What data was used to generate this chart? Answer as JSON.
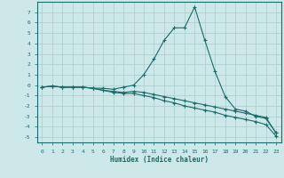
{
  "xlabel": "Humidex (Indice chaleur)",
  "background_color": "#cce8e8",
  "grid_color": "#aacccc",
  "line_color": "#1a6b6b",
  "xlim": [
    -0.5,
    23.5
  ],
  "ylim": [
    -5.5,
    8.0
  ],
  "xticks": [
    0,
    1,
    2,
    3,
    4,
    5,
    6,
    7,
    8,
    9,
    10,
    11,
    12,
    13,
    14,
    15,
    16,
    17,
    18,
    19,
    20,
    21,
    22,
    23
  ],
  "yticks": [
    -5,
    -4,
    -3,
    -2,
    -1,
    0,
    1,
    2,
    3,
    4,
    5,
    6,
    7
  ],
  "line1_x": [
    0,
    1,
    2,
    3,
    4,
    5,
    6,
    7,
    8,
    9,
    10,
    11,
    12,
    13,
    14,
    15,
    16,
    17,
    18,
    19,
    20,
    21,
    22,
    23
  ],
  "line1_y": [
    -0.2,
    -0.1,
    -0.2,
    -0.2,
    -0.2,
    -0.3,
    -0.3,
    -0.4,
    -0.2,
    0.0,
    1.0,
    2.5,
    4.3,
    5.5,
    5.5,
    7.5,
    4.3,
    1.3,
    -1.1,
    -2.3,
    -2.5,
    -3.0,
    -3.2,
    -4.6
  ],
  "line2_x": [
    0,
    1,
    2,
    3,
    4,
    5,
    6,
    7,
    8,
    9,
    10,
    11,
    12,
    13,
    14,
    15,
    16,
    17,
    18,
    19,
    20,
    21,
    22,
    23
  ],
  "line2_y": [
    -0.2,
    -0.1,
    -0.2,
    -0.2,
    -0.2,
    -0.3,
    -0.5,
    -0.6,
    -0.7,
    -0.6,
    -0.7,
    -0.9,
    -1.1,
    -1.3,
    -1.5,
    -1.7,
    -1.9,
    -2.1,
    -2.3,
    -2.5,
    -2.7,
    -2.9,
    -3.1,
    -4.6
  ],
  "line3_x": [
    0,
    1,
    2,
    3,
    4,
    5,
    6,
    7,
    8,
    9,
    10,
    11,
    12,
    13,
    14,
    15,
    16,
    17,
    18,
    19,
    20,
    21,
    22,
    23
  ],
  "line3_y": [
    -0.2,
    -0.1,
    -0.2,
    -0.2,
    -0.2,
    -0.3,
    -0.5,
    -0.7,
    -0.8,
    -0.8,
    -1.0,
    -1.2,
    -1.5,
    -1.7,
    -2.0,
    -2.2,
    -2.4,
    -2.6,
    -2.9,
    -3.1,
    -3.3,
    -3.5,
    -3.8,
    -4.9
  ]
}
